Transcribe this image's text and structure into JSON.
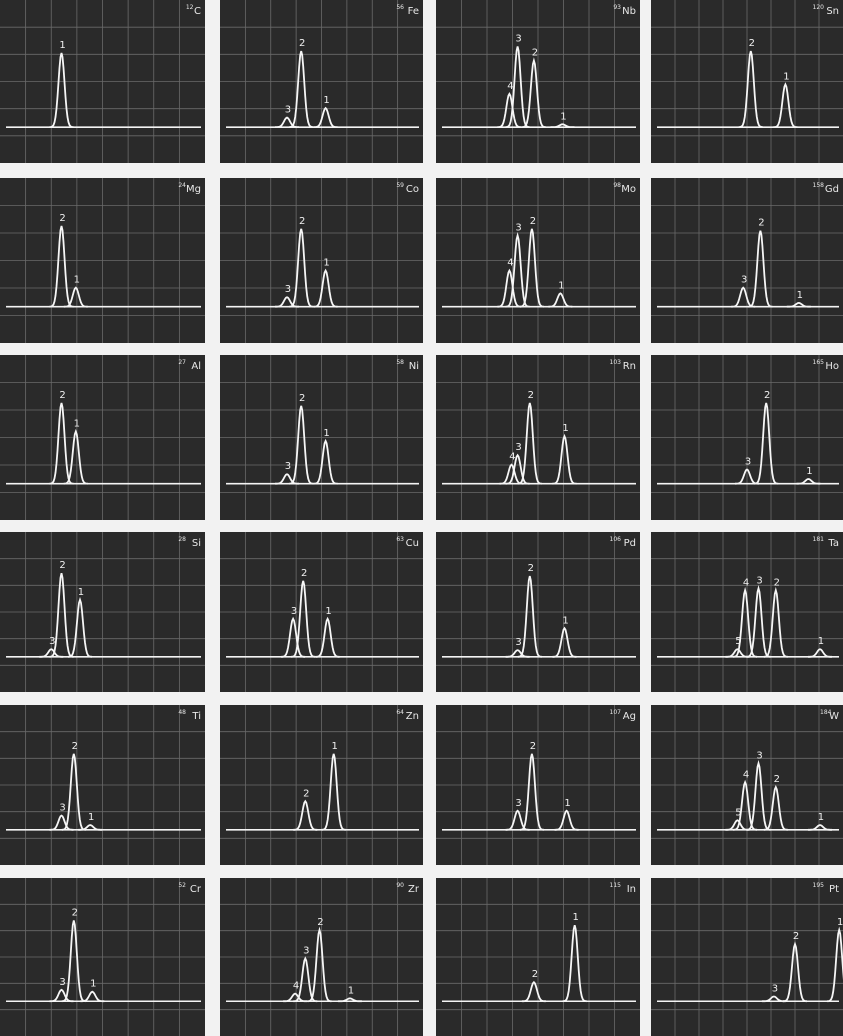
{
  "panels": [
    {
      "mass": "12",
      "symbol": "C",
      "peaks": [
        {
          "label": "1",
          "x": 30,
          "h": 78
        }
      ]
    },
    {
      "mass": "56",
      "symbol": "Fe",
      "peaks": [
        {
          "label": "3",
          "x": 33,
          "h": 10
        },
        {
          "label": "2",
          "x": 40,
          "h": 80
        },
        {
          "label": "1",
          "x": 52,
          "h": 20
        }
      ]
    },
    {
      "mass": "93",
      "symbol": "Nb",
      "peaks": [
        {
          "label": "4",
          "x": 36,
          "h": 35
        },
        {
          "label": "3",
          "x": 40,
          "h": 85
        },
        {
          "label": "2",
          "x": 48,
          "h": 70
        },
        {
          "label": "1",
          "x": 62,
          "h": 3
        }
      ]
    },
    {
      "mass": "120",
      "symbol": "Sn",
      "peaks": [
        {
          "label": "2",
          "x": 52,
          "h": 80
        },
        {
          "label": "1",
          "x": 70,
          "h": 45
        }
      ]
    },
    {
      "mass": "24",
      "symbol": "Mg",
      "peaks": [
        {
          "label": "2",
          "x": 30,
          "h": 85
        },
        {
          "label": "1",
          "x": 37,
          "h": 20
        }
      ]
    },
    {
      "mass": "59",
      "symbol": "Co",
      "peaks": [
        {
          "label": "3",
          "x": 33,
          "h": 10
        },
        {
          "label": "2",
          "x": 40,
          "h": 82
        },
        {
          "label": "1",
          "x": 52,
          "h": 38
        }
      ]
    },
    {
      "mass": "98",
      "symbol": "Mo",
      "peaks": [
        {
          "label": "4",
          "x": 36,
          "h": 38
        },
        {
          "label": "3",
          "x": 40,
          "h": 75
        },
        {
          "label": "2",
          "x": 47,
          "h": 82
        },
        {
          "label": "1",
          "x": 61,
          "h": 14
        }
      ]
    },
    {
      "mass": "158",
      "symbol": "Gd",
      "peaks": [
        {
          "label": "3",
          "x": 48,
          "h": 20
        },
        {
          "label": "2",
          "x": 57,
          "h": 80
        },
        {
          "label": "1",
          "x": 77,
          "h": 4
        }
      ]
    },
    {
      "mass": "27",
      "symbol": "Al",
      "peaks": [
        {
          "label": "2",
          "x": 30,
          "h": 85
        },
        {
          "label": "1",
          "x": 37,
          "h": 55
        }
      ]
    },
    {
      "mass": "58",
      "symbol": "Ni",
      "peaks": [
        {
          "label": "3",
          "x": 33,
          "h": 10
        },
        {
          "label": "2",
          "x": 40,
          "h": 82
        },
        {
          "label": "1",
          "x": 52,
          "h": 45
        }
      ]
    },
    {
      "mass": "103",
      "symbol": "Rn",
      "peaks": [
        {
          "label": "4",
          "x": 37,
          "h": 20
        },
        {
          "label": "3",
          "x": 40,
          "h": 30
        },
        {
          "label": "2",
          "x": 46,
          "h": 85
        },
        {
          "label": "1",
          "x": 63,
          "h": 50
        }
      ]
    },
    {
      "mass": "165",
      "symbol": "Ho",
      "peaks": [
        {
          "label": "3",
          "x": 50,
          "h": 15
        },
        {
          "label": "2",
          "x": 60,
          "h": 85
        },
        {
          "label": "1",
          "x": 82,
          "h": 5
        }
      ]
    },
    {
      "mass": "28",
      "symbol": "Si",
      "peaks": [
        {
          "label": "3",
          "x": 25,
          "h": 8
        },
        {
          "label": "2",
          "x": 30,
          "h": 88
        },
        {
          "label": "1",
          "x": 39,
          "h": 60
        }
      ]
    },
    {
      "mass": "63",
      "symbol": "Cu",
      "peaks": [
        {
          "label": "3",
          "x": 36,
          "h": 40
        },
        {
          "label": "2",
          "x": 41,
          "h": 80
        },
        {
          "label": "1",
          "x": 53,
          "h": 40
        }
      ]
    },
    {
      "mass": "106",
      "symbol": "Pd",
      "peaks": [
        {
          "label": "3",
          "x": 40,
          "h": 7
        },
        {
          "label": "2",
          "x": 46,
          "h": 85
        },
        {
          "label": "1",
          "x": 63,
          "h": 30
        }
      ]
    },
    {
      "mass": "181",
      "symbol": "Ta",
      "peaks": [
        {
          "label": "5",
          "x": 45,
          "h": 8
        },
        {
          "label": "4",
          "x": 49,
          "h": 70
        },
        {
          "label": "3",
          "x": 56,
          "h": 72
        },
        {
          "label": "2",
          "x": 65,
          "h": 70
        },
        {
          "label": "1",
          "x": 88,
          "h": 8
        }
      ]
    },
    {
      "mass": "48",
      "symbol": "Ti",
      "peaks": [
        {
          "label": "3",
          "x": 30,
          "h": 15
        },
        {
          "label": "2",
          "x": 36,
          "h": 80
        },
        {
          "label": "1",
          "x": 44,
          "h": 5
        }
      ]
    },
    {
      "mass": "64",
      "symbol": "Zn",
      "peaks": [
        {
          "label": "2",
          "x": 42,
          "h": 30
        },
        {
          "label": "1",
          "x": 56,
          "h": 80
        }
      ]
    },
    {
      "mass": "107",
      "symbol": "Ag",
      "peaks": [
        {
          "label": "3",
          "x": 40,
          "h": 20
        },
        {
          "label": "2",
          "x": 47,
          "h": 80
        },
        {
          "label": "1",
          "x": 64,
          "h": 20
        }
      ]
    },
    {
      "mass": "184",
      "symbol": "W",
      "peaks": [
        {
          "label": "5",
          "x": 45,
          "h": 10
        },
        {
          "label": "4",
          "x": 49,
          "h": 50
        },
        {
          "label": "3",
          "x": 56,
          "h": 70
        },
        {
          "label": "2",
          "x": 65,
          "h": 45
        },
        {
          "label": "1",
          "x": 88,
          "h": 5
        }
      ]
    },
    {
      "mass": "52",
      "symbol": "Cr",
      "peaks": [
        {
          "label": "3",
          "x": 30,
          "h": 12
        },
        {
          "label": "2",
          "x": 36,
          "h": 85
        },
        {
          "label": "1",
          "x": 45,
          "h": 10
        }
      ]
    },
    {
      "mass": "90",
      "symbol": "Zr",
      "peaks": [
        {
          "label": "4",
          "x": 37,
          "h": 8
        },
        {
          "label": "3",
          "x": 42,
          "h": 45
        },
        {
          "label": "2",
          "x": 49,
          "h": 75
        },
        {
          "label": "1",
          "x": 64,
          "h": 3
        }
      ]
    },
    {
      "mass": "115",
      "symbol": "In",
      "peaks": [
        {
          "label": "2",
          "x": 48,
          "h": 20
        },
        {
          "label": "1",
          "x": 68,
          "h": 80
        }
      ]
    },
    {
      "mass": "195",
      "symbol": "Pt",
      "peaks": [
        {
          "label": "3",
          "x": 64,
          "h": 5
        },
        {
          "label": "2",
          "x": 75,
          "h": 60
        },
        {
          "label": "1",
          "x": 98,
          "h": 75
        }
      ]
    }
  ]
}
